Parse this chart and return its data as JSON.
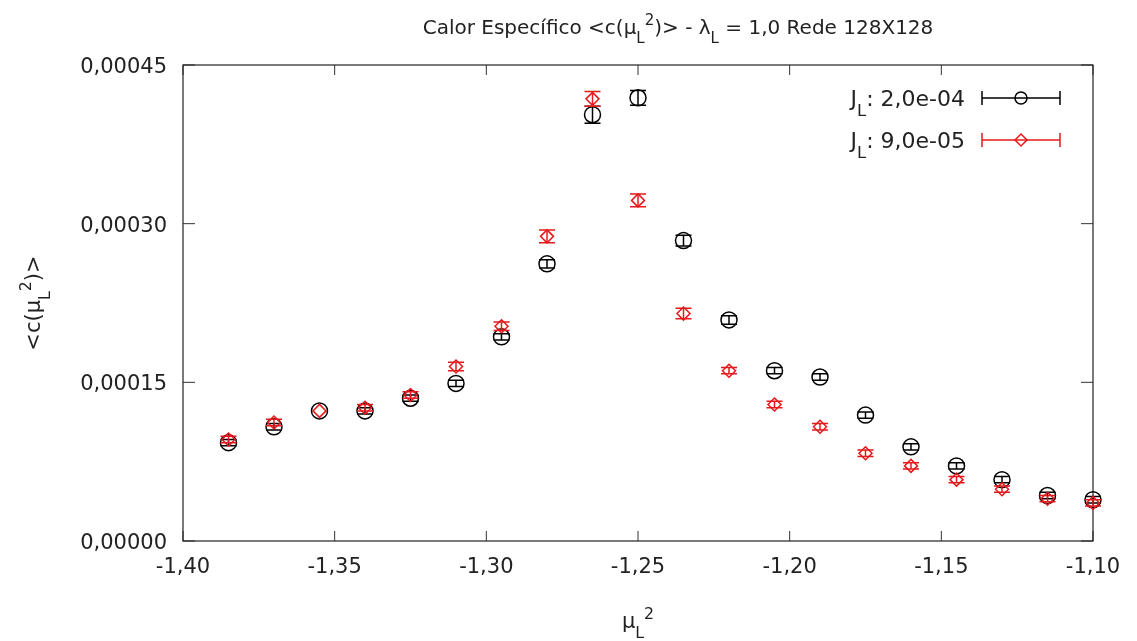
{
  "chart_data": {
    "type": "scatter",
    "title": "Calor Específico <c(μ$_{L}$$^{2}$)> - λ$_{L}$ = 1,0 Rede 128X128",
    "xlabel": "μ$_{L}$$^{2}$",
    "ylabel": "<c(μ$_{L}$$^{2}$)>",
    "x": [
      -1.385,
      -1.37,
      -1.355,
      -1.34,
      -1.325,
      -1.31,
      -1.295,
      -1.28,
      -1.265,
      -1.25,
      -1.235,
      -1.22,
      -1.205,
      -1.19,
      -1.175,
      -1.16,
      -1.145,
      -1.13,
      -1.115,
      -1.1
    ],
    "series": [
      {
        "name": "J$_{L}$: 2,0e-04",
        "color": "#000000",
        "marker": "circle",
        "values": [
          9.3e-05,
          0.000108,
          0.000123,
          0.000123,
          0.000135,
          0.000149,
          0.000193,
          0.000262,
          0.000403,
          0.000419,
          0.000284,
          0.000209,
          0.000161,
          0.000155,
          0.000119,
          8.9e-05,
          7.1e-05,
          5.8e-05,
          4.3e-05,
          3.9e-05
        ],
        "errors": [
          3e-06,
          3e-06,
          null,
          3e-06,
          3e-06,
          3e-06,
          3e-06,
          4e-06,
          8e-06,
          7e-06,
          5e-06,
          4e-06,
          3e-06,
          3e-06,
          3e-06,
          3e-06,
          3e-06,
          3e-06,
          3e-06,
          3e-06
        ]
      },
      {
        "name": "J$_{L}$: 9,0e-05",
        "color": "#e41a1c",
        "marker": "diamond",
        "values": [
          9.6e-05,
          0.000112,
          0.000123,
          0.000126,
          0.000138,
          0.000165,
          0.000203,
          0.000288,
          0.000418,
          0.000322,
          0.000215,
          0.000161,
          0.000129,
          0.000108,
          8.3e-05,
          7.1e-05,
          5.8e-05,
          4.9e-05,
          4e-05,
          3.6e-05
        ],
        "errors": [
          3e-06,
          3e-06,
          null,
          3e-06,
          3e-06,
          4e-06,
          4e-06,
          6e-06,
          7e-06,
          6e-06,
          5e-06,
          3e-06,
          3e-06,
          3e-06,
          3e-06,
          3e-06,
          3e-06,
          3e-06,
          3e-06,
          3e-06
        ]
      }
    ],
    "xlim": [
      -1.4,
      -1.1
    ],
    "xticks": [
      {
        "value": -1.4,
        "label": "-1,40"
      },
      {
        "value": -1.35,
        "label": "-1,35"
      },
      {
        "value": -1.3,
        "label": "-1,30"
      },
      {
        "value": -1.25,
        "label": "-1,25"
      },
      {
        "value": -1.2,
        "label": "-1,20"
      },
      {
        "value": -1.15,
        "label": "-1,15"
      },
      {
        "value": -1.1,
        "label": "-1,10"
      }
    ],
    "ylim": [
      0,
      0.00045
    ],
    "yticks": [
      {
        "value": 0,
        "label": "0,00000"
      },
      {
        "value": 0.00015,
        "label": "0,00015"
      },
      {
        "value": 0.0003,
        "label": "0,00030"
      },
      {
        "value": 0.00045,
        "label": "0,00045"
      }
    ],
    "grid": false,
    "legend": "top right"
  }
}
